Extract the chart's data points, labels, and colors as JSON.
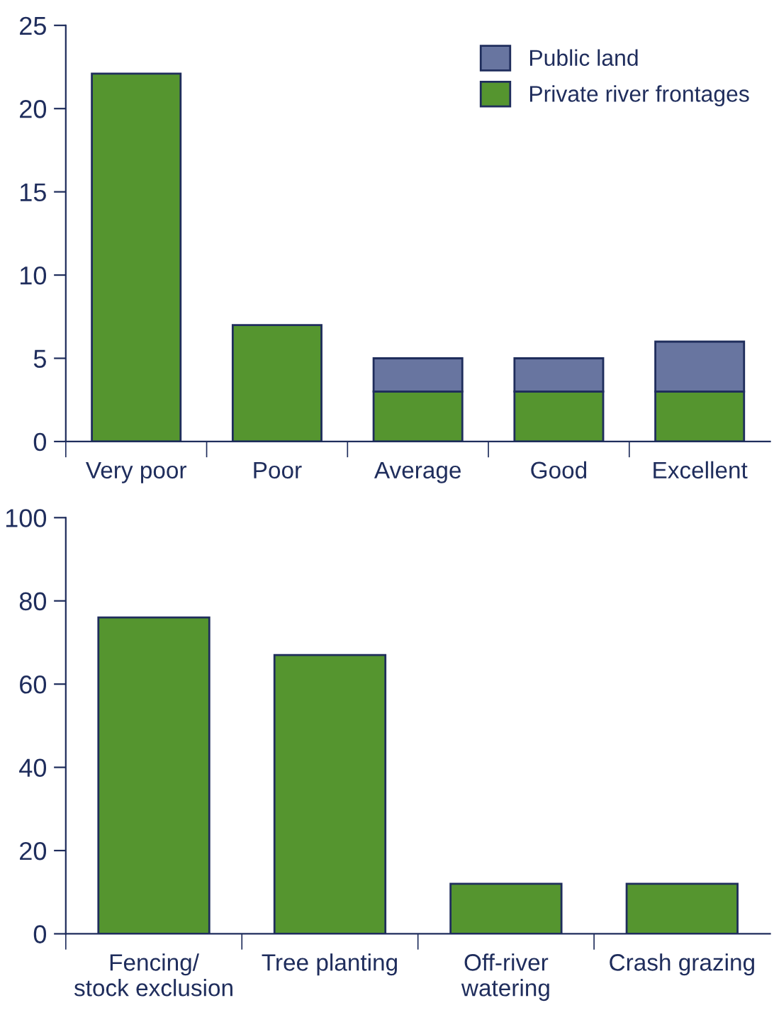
{
  "chart_data": [
    {
      "type": "bar",
      "stacked": true,
      "categories": [
        "Very poor",
        "Poor",
        "Average",
        "Good",
        "Excellent"
      ],
      "series": [
        {
          "name": "Private river frontages",
          "color": "#55952f",
          "values": [
            22.1,
            7,
            3,
            3,
            3
          ]
        },
        {
          "name": "Public land",
          "color": "#6875a0",
          "values": [
            null,
            null,
            2,
            2,
            3
          ]
        }
      ],
      "ylim": [
        0,
        25
      ],
      "yticks": [
        0,
        5,
        10,
        15,
        20,
        25
      ],
      "grid": false,
      "legend": "top right"
    },
    {
      "type": "bar",
      "categories": [
        "Fencing/\nstock exclusion",
        "Tree planting",
        "Off-river\nwatering",
        "Crash grazing"
      ],
      "series": [
        {
          "color": "#55952f",
          "values": [
            76,
            67,
            12,
            12
          ]
        }
      ],
      "ylim": [
        0,
        100
      ],
      "yticks": [
        0,
        20,
        40,
        60,
        80,
        100
      ],
      "grid": false,
      "legend": false
    }
  ]
}
